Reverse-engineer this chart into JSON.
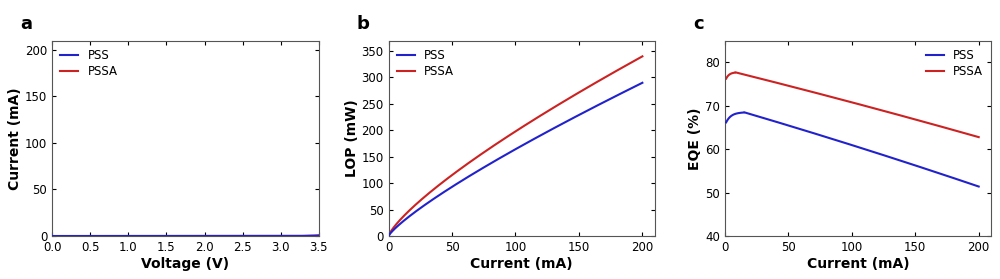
{
  "panel_a": {
    "title": "a",
    "xlabel": "Voltage (V)",
    "ylabel": "Current (mA)",
    "xlim": [
      0.0,
      3.5
    ],
    "ylim": [
      0,
      210
    ],
    "xticks": [
      0.0,
      0.5,
      1.0,
      1.5,
      2.0,
      2.5,
      3.0,
      3.5
    ],
    "yticks": [
      0,
      50,
      100,
      150,
      200
    ],
    "pss_color": "#2222cc",
    "pssa_color": "#cc2222"
  },
  "panel_b": {
    "title": "b",
    "xlabel": "Current (mA)",
    "ylabel": "LOP (mW)",
    "xlim": [
      0,
      210
    ],
    "ylim": [
      0,
      370
    ],
    "xticks": [
      0,
      50,
      100,
      150,
      200
    ],
    "yticks": [
      0,
      50,
      100,
      150,
      200,
      250,
      300,
      350
    ],
    "pss_color": "#2222cc",
    "pssa_color": "#cc2222"
  },
  "panel_c": {
    "title": "c",
    "xlabel": "Current (mA)",
    "ylabel": "EQE (%)",
    "xlim": [
      0,
      210
    ],
    "ylim": [
      40,
      85
    ],
    "xticks": [
      0,
      50,
      100,
      150,
      200
    ],
    "yticks": [
      40,
      50,
      60,
      70,
      80
    ],
    "pss_color": "#2222cc",
    "pssa_color": "#cc2222"
  },
  "figure_bg": "#ffffff",
  "axes_bg": "#ffffff",
  "line_width": 1.5
}
